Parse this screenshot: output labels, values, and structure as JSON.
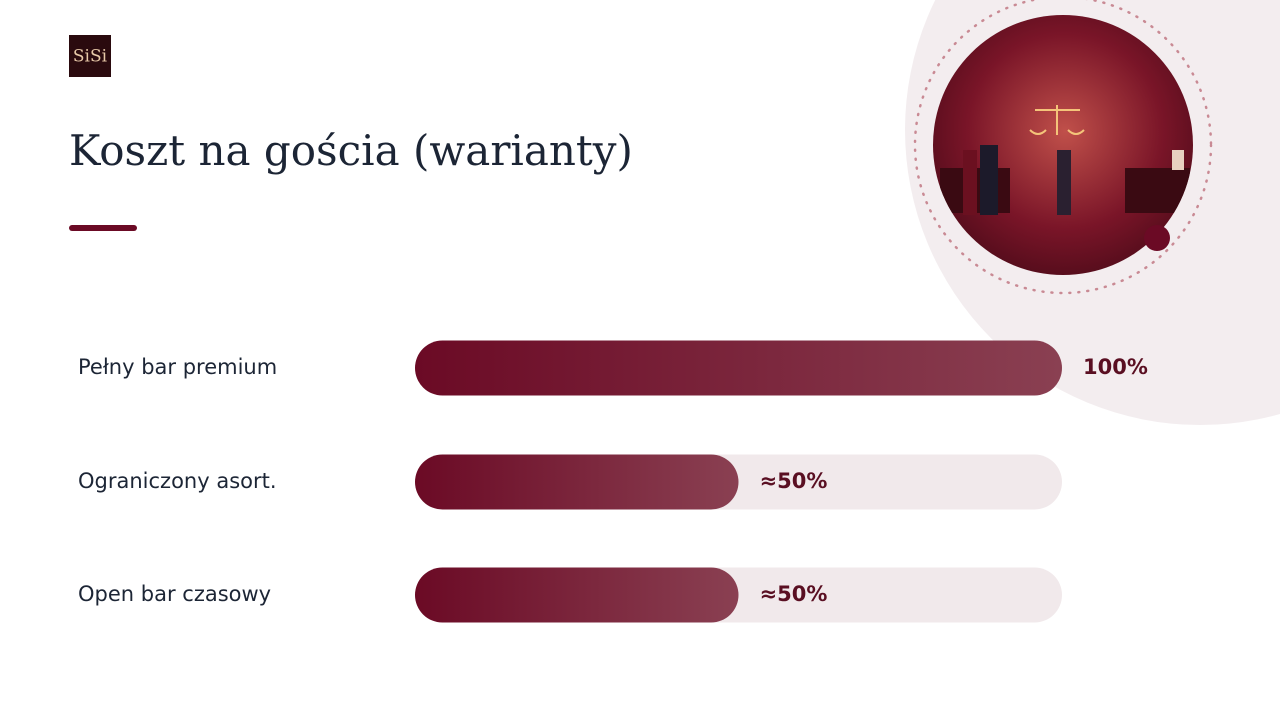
{
  "logo": "SiSi",
  "chart_data": {
    "type": "bar",
    "orientation": "horizontal",
    "title": "Koszt na gościa (warianty)",
    "categories": [
      "Pełny bar premium",
      "Ograniczony asort.",
      "Open bar czasowy"
    ],
    "values": [
      100,
      50,
      50
    ],
    "value_labels": [
      "100%",
      "≈50%",
      "≈50%"
    ],
    "xlim": [
      0,
      100
    ],
    "color": "#6b0a25"
  }
}
